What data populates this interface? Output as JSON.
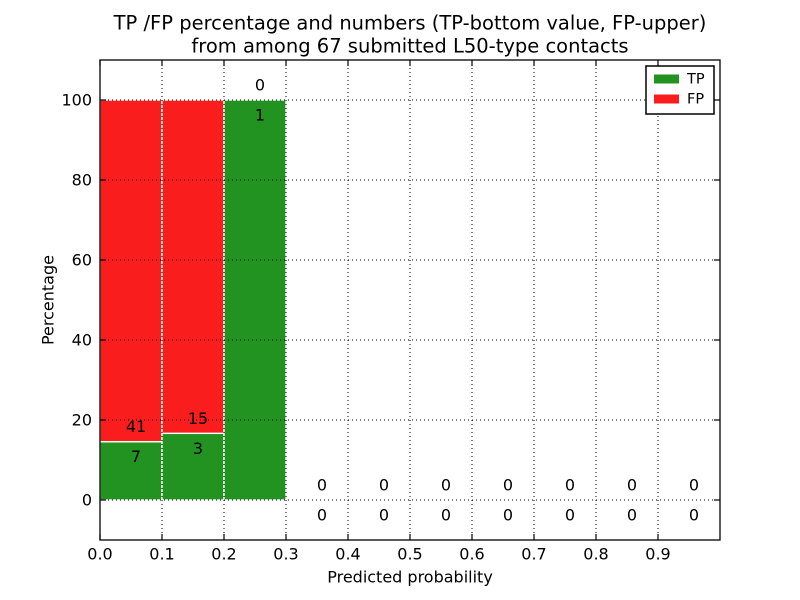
{
  "chart_data": {
    "type": "bar",
    "stacked": true,
    "title_lines": [
      "TP /FP percentage and numbers (TP-bottom value, FP-upper)",
      "from among 67 submitted L50-type contacts"
    ],
    "xlabel": "Predicted probability",
    "ylabel": "Percentage",
    "xlim": [
      0.0,
      1.0
    ],
    "ylim": [
      -10,
      110
    ],
    "xtick_values": [
      0.0,
      0.1,
      0.2,
      0.3,
      0.4,
      0.5,
      0.6,
      0.7,
      0.8,
      0.9
    ],
    "xtick_labels": [
      "0.0",
      "0.1",
      "0.2",
      "0.3",
      "0.4",
      "0.5",
      "0.6",
      "0.7",
      "0.8",
      "0.9"
    ],
    "ytick_values": [
      0,
      20,
      40,
      60,
      80,
      100
    ],
    "ytick_labels": [
      "0",
      "20",
      "40",
      "60",
      "80",
      "100"
    ],
    "grid": {
      "style": "dotted",
      "color": "#000000"
    },
    "total_contacts": 67,
    "bin_width": 0.1,
    "bins": [
      {
        "range": [
          0.0,
          0.1
        ],
        "tp_count": 7,
        "fp_count": 41,
        "tp_pct": 14.58,
        "fp_pct": 85.42
      },
      {
        "range": [
          0.1,
          0.2
        ],
        "tp_count": 3,
        "fp_count": 15,
        "tp_pct": 16.67,
        "fp_pct": 83.33
      },
      {
        "range": [
          0.2,
          0.3
        ],
        "tp_count": 1,
        "fp_count": 0,
        "tp_pct": 100,
        "fp_pct": 0
      },
      {
        "range": [
          0.3,
          0.4
        ],
        "tp_count": 0,
        "fp_count": 0,
        "tp_pct": 0,
        "fp_pct": 0
      },
      {
        "range": [
          0.4,
          0.5
        ],
        "tp_count": 0,
        "fp_count": 0,
        "tp_pct": 0,
        "fp_pct": 0
      },
      {
        "range": [
          0.5,
          0.6
        ],
        "tp_count": 0,
        "fp_count": 0,
        "tp_pct": 0,
        "fp_pct": 0
      },
      {
        "range": [
          0.6,
          0.7
        ],
        "tp_count": 0,
        "fp_count": 0,
        "tp_pct": 0,
        "fp_pct": 0
      },
      {
        "range": [
          0.7,
          0.8
        ],
        "tp_count": 0,
        "fp_count": 0,
        "tp_pct": 0,
        "fp_pct": 0
      },
      {
        "range": [
          0.8,
          0.9
        ],
        "tp_count": 0,
        "fp_count": 0,
        "tp_pct": 0,
        "fp_pct": 0
      },
      {
        "range": [
          0.9,
          1.0
        ],
        "tp_count": 0,
        "fp_count": 0,
        "tp_pct": 0,
        "fp_pct": 0
      }
    ],
    "legend": {
      "position": "upper-right",
      "entries": [
        {
          "label": "TP",
          "color": "#229320"
        },
        {
          "label": "FP",
          "color": "#fa1d1d"
        }
      ]
    },
    "colors": {
      "tp": "#229320",
      "fp": "#fa1d1d",
      "bar_edge": "#ffffff",
      "text": "#000000",
      "background": "#ffffff",
      "frame": "#000000"
    }
  }
}
